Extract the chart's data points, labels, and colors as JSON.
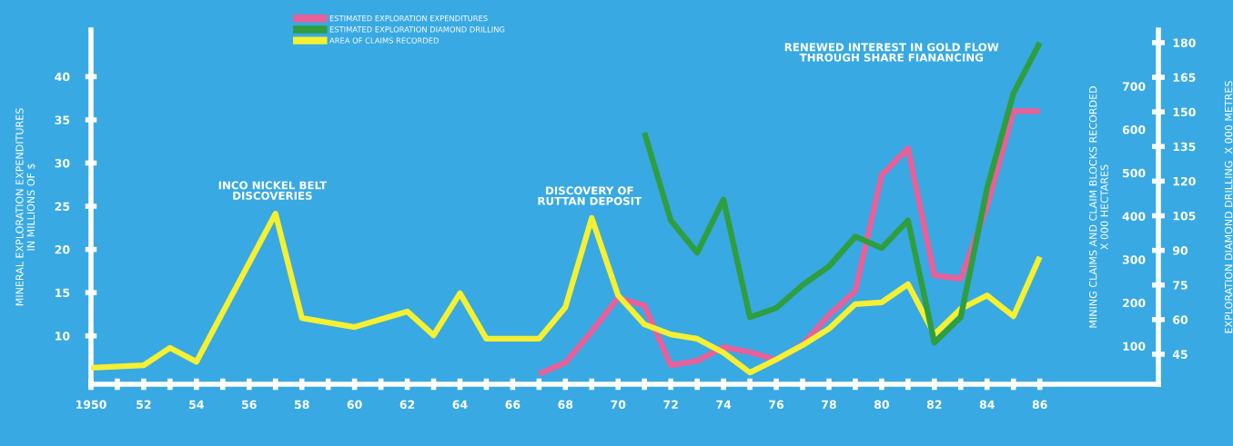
{
  "chart_data": {
    "type": "line",
    "xlim": [
      1950,
      1990.5
    ],
    "xticks": [
      {
        "value": 1950,
        "label": "1950"
      },
      {
        "value": 1951,
        "label": null
      },
      {
        "value": 1952,
        "label": "52"
      },
      {
        "value": 1953,
        "label": null
      },
      {
        "value": 1954,
        "label": "54"
      },
      {
        "value": 1955,
        "label": null
      },
      {
        "value": 1956,
        "label": "56"
      },
      {
        "value": 1957,
        "label": null
      },
      {
        "value": 1958,
        "label": "58"
      },
      {
        "value": 1959,
        "label": null
      },
      {
        "value": 1960,
        "label": "60"
      },
      {
        "value": 1961,
        "label": null
      },
      {
        "value": 1962,
        "label": "62"
      },
      {
        "value": 1963,
        "label": null
      },
      {
        "value": 1964,
        "label": "64"
      },
      {
        "value": 1965,
        "label": null
      },
      {
        "value": 1966,
        "label": "66"
      },
      {
        "value": 1967,
        "label": null
      },
      {
        "value": 1968,
        "label": "68"
      },
      {
        "value": 1969,
        "label": null
      },
      {
        "value": 1970,
        "label": "70"
      },
      {
        "value": 1971,
        "label": null
      },
      {
        "value": 1972,
        "label": "72"
      },
      {
        "value": 1973,
        "label": null
      },
      {
        "value": 1974,
        "label": "74"
      },
      {
        "value": 1975,
        "label": null
      },
      {
        "value": 1976,
        "label": "76"
      },
      {
        "value": 1977,
        "label": null
      },
      {
        "value": 1978,
        "label": "78"
      },
      {
        "value": 1979,
        "label": null
      },
      {
        "value": 1980,
        "label": "80"
      },
      {
        "value": 1981,
        "label": null
      },
      {
        "value": 1982,
        "label": "82"
      },
      {
        "value": 1983,
        "label": null
      },
      {
        "value": 1984,
        "label": "84"
      },
      {
        "value": 1985,
        "label": null
      },
      {
        "value": 1986,
        "label": "86"
      }
    ],
    "ylim": [
      4.4,
      45.4
    ],
    "yticks": [
      10,
      15,
      20,
      25,
      30,
      35,
      40
    ],
    "ylabel": "MINERAL EXPLORATION EXPENDITURES\nIN MILLIONS OF $",
    "y2lim": [
      12,
      830
    ],
    "y2ticks": [
      100,
      200,
      300,
      400,
      500,
      600,
      700
    ],
    "y2label": "MINING CLAIMS AND CLAIM BLOCKS RECORDED\nX 000 HECTARES",
    "y3lim": [
      32,
      185.5
    ],
    "y3ticks": [
      45,
      60,
      75,
      90,
      105,
      120,
      135,
      150,
      165,
      180
    ],
    "y3label": "EXPLORATION DIAMOND DRILLING  X 000 METRES",
    "legend": "top",
    "grid": false,
    "marker": "none",
    "line_style": "solid",
    "series": [
      {
        "name": "ESTIMATED EXPLORATION EXPENDITURES",
        "color": "#e8609a",
        "x": [
          1967,
          1968,
          1969,
          1970,
          1971,
          1972,
          1973,
          1974,
          1975,
          1976,
          1977,
          1978,
          1979,
          1980,
          1981,
          1982,
          1983,
          1984,
          1985,
          1986
        ],
        "values": [
          5.6,
          6.9,
          10.5,
          14.4,
          13.5,
          6.6,
          7.1,
          8.7,
          8.1,
          7.2,
          9.0,
          12.4,
          15.2,
          28.6,
          31.7,
          17.0,
          16.6,
          25.0,
          36.0,
          36.0
        ]
      },
      {
        "name": "ESTIMATED EXPLORATION DIAMOND DRILLING",
        "color": "#2e9e3e",
        "axis": "y3",
        "x": [
          1971,
          1972,
          1973,
          1974,
          1975,
          1976,
          1977,
          1978,
          1979,
          1980,
          1981,
          1982,
          1983,
          1984,
          1985,
          1986
        ],
        "values": [
          141,
          103,
          89,
          112,
          61,
          65,
          75,
          83,
          96,
          91,
          103,
          50,
          61,
          117,
          158,
          180
        ]
      },
      {
        "name": "AREA OF CLAIMS RECORDED",
        "color": "#f5f032",
        "axis": "y2",
        "x": [
          1950,
          1952,
          1953,
          1954,
          1957,
          1958,
          1960,
          1962,
          1963,
          1964,
          1965,
          1967,
          1968,
          1969,
          1970,
          1971,
          1972,
          1973,
          1974,
          1975,
          1976,
          1977,
          1978,
          1979,
          1980,
          1981,
          1982,
          1983,
          1984,
          1985,
          1986
        ],
        "values": [
          50,
          56,
          96,
          64,
          406,
          165,
          144,
          180,
          125,
          222,
          117,
          117,
          190,
          396,
          217,
          150,
          127,
          117,
          85,
          39,
          69,
          102,
          140,
          197,
          201,
          243,
          127,
          186,
          217,
          169,
          306
        ]
      }
    ],
    "annotations": [
      "INCO NICKEL BELT\nDISCOVERIES",
      "DISCOVERY OF\nRUTTAN DEPOSIT",
      "RENEWED INTEREST IN GOLD FLOW\nTHROUGH SHARE FIANANCING"
    ]
  }
}
